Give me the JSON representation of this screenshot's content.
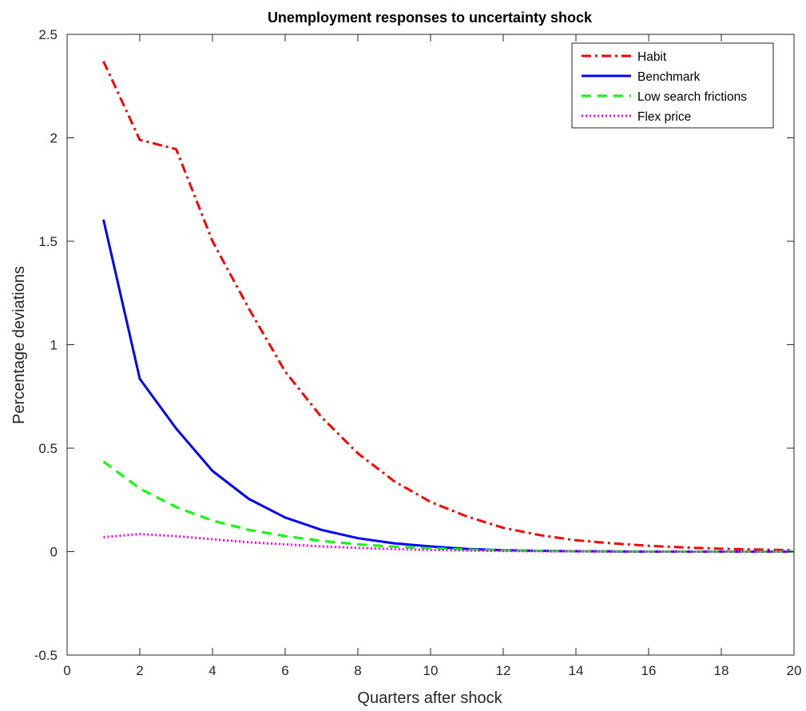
{
  "chart_data": {
    "type": "line",
    "title": "Unemployment responses to uncertainty shock",
    "xlabel": "Quarters after shock",
    "ylabel": "Percentage deviations",
    "xlim": [
      0,
      20
    ],
    "ylim": [
      -0.5,
      2.5
    ],
    "xticks": [
      0,
      2,
      4,
      6,
      8,
      10,
      12,
      14,
      16,
      18,
      20
    ],
    "yticks": [
      -0.5,
      0,
      0.5,
      1,
      1.5,
      2,
      2.5
    ],
    "x": [
      1,
      2,
      3,
      4,
      5,
      6,
      7,
      8,
      9,
      10,
      11,
      12,
      13,
      14,
      15,
      16,
      17,
      18,
      19,
      20
    ],
    "grid": false,
    "legend_position": "top-right",
    "series": [
      {
        "name": "Habit",
        "color": "#ff0000",
        "style": "dash-dot",
        "values": [
          2.37,
          1.99,
          1.945,
          1.5,
          1.175,
          0.87,
          0.65,
          0.475,
          0.34,
          0.24,
          0.17,
          0.115,
          0.08,
          0.055,
          0.04,
          0.028,
          0.02,
          0.014,
          0.01,
          0.007
        ]
      },
      {
        "name": "Benchmark",
        "color": "#0000ff",
        "style": "solid",
        "values": [
          1.605,
          0.835,
          0.595,
          0.39,
          0.255,
          0.165,
          0.105,
          0.065,
          0.04,
          0.025,
          0.013,
          0.007,
          0.004,
          0.002,
          0.001,
          0.0,
          0.0,
          0.0,
          0.0,
          0.0
        ]
      },
      {
        "name": "Low search frictions",
        "color": "#00ff00",
        "style": "dashed",
        "values": [
          0.435,
          0.305,
          0.215,
          0.15,
          0.105,
          0.075,
          0.052,
          0.035,
          0.024,
          0.016,
          0.01,
          0.006,
          0.004,
          0.002,
          0.001,
          0.0,
          0.0,
          0.0,
          0.0,
          0.0
        ]
      },
      {
        "name": "Flex price",
        "color": "#ff00ff",
        "style": "dotted",
        "values": [
          0.07,
          0.085,
          0.075,
          0.06,
          0.045,
          0.035,
          0.025,
          0.018,
          0.012,
          0.008,
          0.005,
          0.003,
          0.002,
          0.001,
          0.0,
          0.0,
          0.0,
          0.0,
          0.0,
          0.0
        ]
      }
    ]
  }
}
